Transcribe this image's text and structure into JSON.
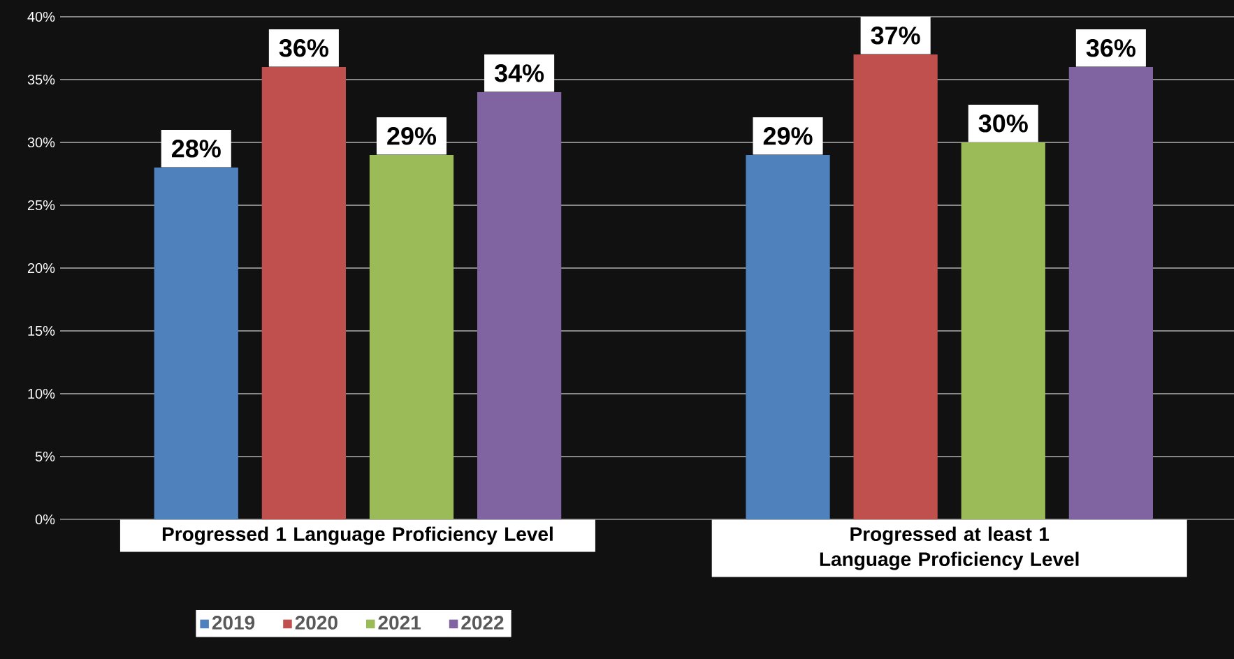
{
  "chart_data": {
    "type": "bar",
    "categories": [
      "Progressed 1 Language Proficiency Level",
      "Progressed  at least 1 Language Proficiency Level"
    ],
    "series": [
      {
        "name": "2019",
        "color": "#4f81bd",
        "values": [
          28,
          29
        ],
        "value_labels": [
          "28%",
          "29%"
        ]
      },
      {
        "name": "2020",
        "color": "#c0504d",
        "values": [
          36,
          37
        ],
        "value_labels": [
          "36%",
          "37%"
        ]
      },
      {
        "name": "2021",
        "color": "#9bbb59",
        "values": [
          29,
          30
        ],
        "value_labels": [
          "29%",
          "30%"
        ]
      },
      {
        "name": "2022",
        "color": "#8064a2",
        "values": [
          34,
          36
        ],
        "value_labels": [
          "34%",
          "36%"
        ]
      }
    ],
    "ylim": [
      0,
      40
    ],
    "yticks": [
      {
        "value": 0,
        "label": "0%"
      },
      {
        "value": 5,
        "label": "5%"
      },
      {
        "value": 10,
        "label": "10%"
      },
      {
        "value": 15,
        "label": "15%"
      },
      {
        "value": 20,
        "label": "20%"
      },
      {
        "value": 25,
        "label": "25%"
      },
      {
        "value": 30,
        "label": "30%"
      },
      {
        "value": 35,
        "label": "35%"
      },
      {
        "value": 40,
        "label": "40%"
      }
    ],
    "grid": "y",
    "legend": "bottom"
  }
}
